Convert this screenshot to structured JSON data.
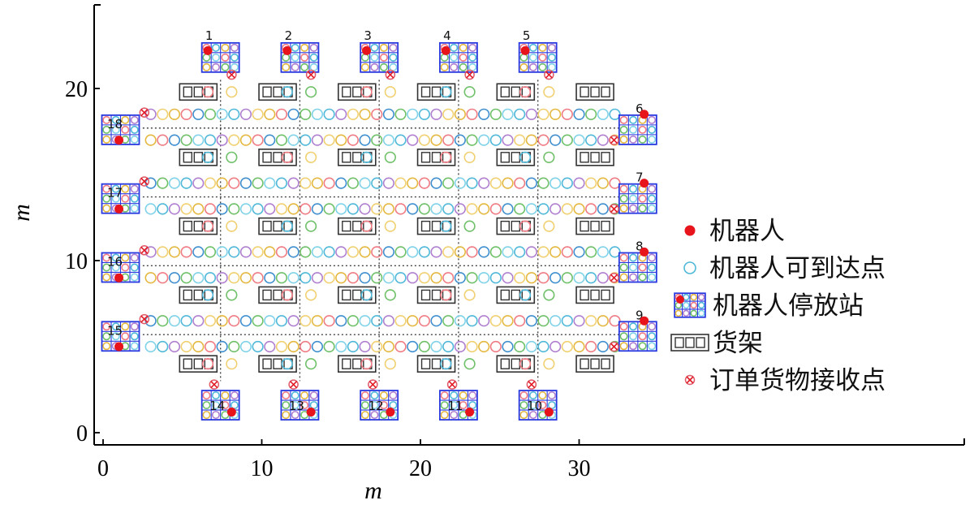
{
  "chart_data": {
    "type": "scatter",
    "xlabel": "m",
    "ylabel": "m",
    "xlim": [
      -0.5,
      36
    ],
    "ylim": [
      -0.5,
      24.5
    ],
    "x_ticks": [
      "0",
      "10",
      "20",
      "30"
    ],
    "y_ticks": [
      "0",
      "10",
      "20"
    ],
    "legend_position": "right",
    "legend": [
      {
        "label": "机器人",
        "marker": "robot"
      },
      {
        "label": "机器人可到达点",
        "marker": "reachable-point"
      },
      {
        "label": "机器人停放站",
        "marker": "parking-station"
      },
      {
        "label": "货架",
        "marker": "shelf"
      },
      {
        "label": "订单货物接收点",
        "marker": "receiving-point"
      }
    ],
    "stations": [
      {
        "id": "1",
        "x": 7.4,
        "y": 21.8
      },
      {
        "id": "2",
        "x": 12.4,
        "y": 21.8
      },
      {
        "id": "3",
        "x": 17.4,
        "y": 21.8
      },
      {
        "id": "4",
        "x": 22.4,
        "y": 21.8
      },
      {
        "id": "5",
        "x": 27.4,
        "y": 21.8
      },
      {
        "id": "6",
        "x": 33.7,
        "y": 17.6
      },
      {
        "id": "7",
        "x": 33.7,
        "y": 13.6
      },
      {
        "id": "8",
        "x": 33.7,
        "y": 9.6
      },
      {
        "id": "9",
        "x": 33.7,
        "y": 5.6
      },
      {
        "id": "10",
        "x": 27.4,
        "y": 1.6
      },
      {
        "id": "11",
        "x": 22.4,
        "y": 1.6
      },
      {
        "id": "12",
        "x": 17.4,
        "y": 1.6
      },
      {
        "id": "13",
        "x": 12.4,
        "y": 1.6
      },
      {
        "id": "14",
        "x": 7.4,
        "y": 1.6
      },
      {
        "id": "15",
        "x": 1.1,
        "y": 5.6
      },
      {
        "id": "16",
        "x": 1.1,
        "y": 9.6
      },
      {
        "id": "17",
        "x": 1.1,
        "y": 13.6
      },
      {
        "id": "18",
        "x": 1.1,
        "y": 17.6
      }
    ],
    "robots": [
      {
        "x": 6.6,
        "y": 22.2
      },
      {
        "x": 11.6,
        "y": 22.2
      },
      {
        "x": 16.6,
        "y": 22.2
      },
      {
        "x": 21.6,
        "y": 22.2
      },
      {
        "x": 26.6,
        "y": 22.2
      },
      {
        "x": 34.1,
        "y": 18.5
      },
      {
        "x": 34.1,
        "y": 14.5
      },
      {
        "x": 34.1,
        "y": 10.5
      },
      {
        "x": 34.1,
        "y": 6.5
      },
      {
        "x": 28.1,
        "y": 1.2
      },
      {
        "x": 23.1,
        "y": 1.2
      },
      {
        "x": 18.1,
        "y": 1.2
      },
      {
        "x": 13.1,
        "y": 1.2
      },
      {
        "x": 8.1,
        "y": 1.2
      },
      {
        "x": 1.0,
        "y": 5.0
      },
      {
        "x": 1.0,
        "y": 9.0
      },
      {
        "x": 1.0,
        "y": 13.0
      },
      {
        "x": 1.0,
        "y": 17.0
      }
    ],
    "receiving_points": [
      {
        "x": 8.1,
        "y": 20.8
      },
      {
        "x": 13.1,
        "y": 20.8
      },
      {
        "x": 18.1,
        "y": 20.8
      },
      {
        "x": 23.1,
        "y": 20.8
      },
      {
        "x": 28.1,
        "y": 20.8
      },
      {
        "x": 32.2,
        "y": 17.0
      },
      {
        "x": 32.2,
        "y": 13.0
      },
      {
        "x": 32.2,
        "y": 9.0
      },
      {
        "x": 32.2,
        "y": 5.0
      },
      {
        "x": 27.0,
        "y": 2.8
      },
      {
        "x": 22.0,
        "y": 2.8
      },
      {
        "x": 17.0,
        "y": 2.8
      },
      {
        "x": 12.0,
        "y": 2.8
      },
      {
        "x": 7.0,
        "y": 2.8
      },
      {
        "x": 2.6,
        "y": 6.6
      },
      {
        "x": 2.6,
        "y": 10.6
      },
      {
        "x": 2.6,
        "y": 14.6
      },
      {
        "x": 2.6,
        "y": 18.6
      }
    ],
    "shelf_columns_x": [
      6.0,
      11.0,
      16.0,
      21.0,
      26.0,
      31.0
    ],
    "shelf_rows_y": [
      19.8,
      16.0,
      12.0,
      8.0,
      4.0
    ],
    "grid_x_range": [
      3.0,
      32.5
    ],
    "grid_rows_y": [
      18.5,
      17.0,
      14.5,
      13.0,
      10.5,
      9.0,
      6.5,
      5.0
    ],
    "mid_rows_y": [
      19.8,
      16.0,
      12.0,
      8.0,
      4.0
    ],
    "mid_cols_x": [
      6.6,
      8.1,
      11.6,
      13.1,
      16.6,
      18.1,
      21.6,
      23.1,
      26.6,
      28.1
    ],
    "dashed_rows_y": [
      17.7,
      13.7,
      9.7,
      5.7
    ],
    "dashed_cols_x": [
      7.4,
      12.4,
      17.4,
      22.4,
      27.4
    ],
    "palette": [
      "#4fb8d8",
      "#e4b840",
      "#6fc069",
      "#b07fd0",
      "#ef7b83",
      "#7fd2e8",
      "#f0d070",
      "#3f8fcf"
    ],
    "robot_color": "#e8141c",
    "station_color": "#2838e0"
  }
}
